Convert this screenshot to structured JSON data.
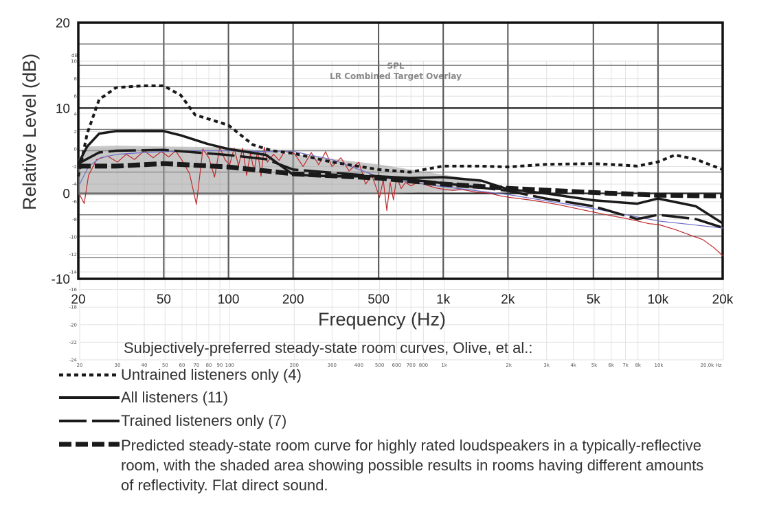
{
  "chart_data": {
    "type": "line",
    "main_axes": {
      "ylabel": "Relative Level (dB)",
      "xlabel": "Frequency (Hz)",
      "y_ticks": [
        "20",
        "10",
        "0",
        "-10"
      ],
      "ylim": [
        -10,
        20
      ],
      "x_scale": "log",
      "xlim": [
        20,
        20000
      ],
      "x_ticks": [
        {
          "value": 20,
          "label": "20"
        },
        {
          "value": 50,
          "label": "50"
        },
        {
          "value": 100,
          "label": "100"
        },
        {
          "value": 200,
          "label": "200"
        },
        {
          "value": 500,
          "label": "500"
        },
        {
          "value": 1000,
          "label": "1k"
        },
        {
          "value": 2000,
          "label": "2k"
        },
        {
          "value": 5000,
          "label": "5k"
        },
        {
          "value": 10000,
          "label": "10k"
        },
        {
          "value": 20000,
          "label": "20k"
        }
      ],
      "grid": true
    },
    "overlay": {
      "title_line1": "SPL",
      "title_line2": "LR Combined Target Overlay",
      "y_unit": "dB",
      "ylim": [
        -24,
        10
      ],
      "y_ticks": [
        "10",
        "8",
        "6",
        "4",
        "2",
        "0",
        "-2",
        "-4",
        "-6",
        "-8",
        "-10",
        "-12",
        "-14",
        "-16",
        "-18",
        "-20",
        "-22",
        "-24"
      ],
      "x_ticks": [
        {
          "value": 20,
          "label": "20"
        },
        {
          "value": 30,
          "label": "30"
        },
        {
          "value": 40,
          "label": "40"
        },
        {
          "value": 50,
          "label": "50"
        },
        {
          "value": 60,
          "label": "60"
        },
        {
          "value": 70,
          "label": "70"
        },
        {
          "value": 80,
          "label": "80"
        },
        {
          "value": 90,
          "label": "90"
        },
        {
          "value": 100,
          "label": "100"
        },
        {
          "value": 200,
          "label": "200"
        },
        {
          "value": 300,
          "label": "300"
        },
        {
          "value": 400,
          "label": "400"
        },
        {
          "value": 500,
          "label": "500"
        },
        {
          "value": 600,
          "label": "600"
        },
        {
          "value": 700,
          "label": "700"
        },
        {
          "value": 800,
          "label": "800"
        },
        {
          "value": 1000,
          "label": "1k"
        },
        {
          "value": 2000,
          "label": "2k"
        },
        {
          "value": 3000,
          "label": "3k"
        },
        {
          "value": 4000,
          "label": "4k"
        },
        {
          "value": 5000,
          "label": "5k"
        },
        {
          "value": 6000,
          "label": "6k"
        },
        {
          "value": 7000,
          "label": "7k"
        },
        {
          "value": 8000,
          "label": "8k"
        },
        {
          "value": 10000,
          "label": "10k"
        },
        {
          "value": 20000,
          "label": "20.0k Hz"
        }
      ]
    },
    "shaded_area": {
      "x": [
        20,
        22,
        30,
        50,
        100,
        200,
        500,
        1000,
        1500
      ],
      "upper": [
        4.0,
        5.5,
        5.6,
        5.5,
        5.4,
        4.6,
        3.4,
        2.2,
        1.5
      ],
      "lower": [
        -0.2,
        -0.2,
        -0.2,
        -0.2,
        -0.2,
        -0.2,
        -0.1,
        0.2,
        0.5
      ]
    },
    "series": [
      {
        "name": "Untrained listeners only (4)",
        "style": "dotted",
        "color": "#1a1a1a",
        "x": [
          20,
          22,
          25,
          30,
          40,
          50,
          60,
          70,
          100,
          130,
          160,
          200,
          300,
          500,
          700,
          1000,
          1500,
          2000,
          3000,
          5000,
          7000,
          8000,
          10000,
          12000,
          15000,
          20000
        ],
        "y": [
          2.0,
          7.0,
          11.0,
          12.4,
          12.6,
          12.6,
          11.5,
          9.2,
          8.0,
          5.7,
          5.0,
          4.7,
          3.7,
          2.8,
          2.5,
          3.2,
          3.2,
          3.1,
          3.4,
          3.5,
          3.3,
          3.2,
          3.7,
          4.5,
          4.0,
          2.8
        ]
      },
      {
        "name": "All listeners (11)",
        "style": "solid",
        "color": "#1a1a1a",
        "x": [
          20,
          22,
          25,
          30,
          50,
          60,
          80,
          100,
          150,
          200,
          300,
          500,
          700,
          1000,
          1500,
          2000,
          3000,
          5000,
          8000,
          10000,
          12000,
          15000,
          20000
        ],
        "y": [
          3.5,
          5.5,
          7.0,
          7.3,
          7.3,
          6.8,
          5.8,
          5.2,
          4.5,
          2.2,
          2.0,
          2.0,
          1.8,
          1.9,
          1.5,
          0.5,
          0.0,
          -0.8,
          -1.2,
          -0.6,
          -1.0,
          -1.5,
          -3.5
        ]
      },
      {
        "name": "Trained listeners only (7)",
        "style": "long-dash",
        "color": "#1a1a1a",
        "x": [
          20,
          25,
          30,
          50,
          100,
          150,
          200,
          500,
          1000,
          2000,
          3000,
          5000,
          8000,
          10000,
          15000,
          20000
        ],
        "y": [
          3.5,
          4.8,
          5.0,
          5.1,
          4.5,
          4.0,
          2.8,
          2.0,
          1.2,
          0.3,
          -0.6,
          -1.5,
          -3.0,
          -2.5,
          -3.0,
          -4.0
        ]
      },
      {
        "name": "Predicted steady-state room curve for highly rated loudspeakers in a typically-reflective room, with the shaded area showing possible results in rooms having different amounts of reflectivity.  Flat direct sound.",
        "style": "bold-dash",
        "color": "#1a1a1a",
        "x": [
          20,
          30,
          50,
          100,
          200,
          500,
          1000,
          2000,
          5000,
          10000,
          20000
        ],
        "y": [
          3.2,
          3.2,
          3.5,
          3.1,
          2.3,
          1.8,
          1.1,
          0.6,
          0.1,
          -0.2,
          -0.3
        ]
      }
    ],
    "overlay_series": [
      {
        "style": "solid",
        "color": "#c0282a",
        "x": [
          20,
          21,
          22,
          24,
          27,
          30,
          33,
          36,
          40,
          44,
          48,
          52,
          56,
          60,
          65,
          70,
          75,
          80,
          85,
          90,
          95,
          100,
          105,
          110,
          115,
          120,
          125,
          130,
          135,
          140,
          145,
          150,
          160,
          170,
          180,
          200,
          220,
          240,
          260,
          280,
          300,
          330,
          360,
          400,
          430,
          460,
          500,
          520,
          540,
          560,
          580,
          600,
          630,
          660,
          700,
          750,
          800,
          900,
          1000,
          1100,
          1200,
          1400,
          1600,
          1800,
          2000,
          2500,
          3000,
          3500,
          4000,
          5000,
          6000,
          7000,
          8000,
          9000,
          10000,
          12000,
          14000,
          16000,
          18000,
          20000
        ],
        "y": [
          -5.2,
          -6.2,
          -3.0,
          -1.2,
          -0.8,
          -1.5,
          -0.6,
          -1.2,
          -0.2,
          -1.0,
          -0.3,
          -0.9,
          -0.2,
          -1.3,
          -2.8,
          -6.3,
          0.0,
          -1.0,
          -3.2,
          0.2,
          -1.2,
          -1.8,
          0.1,
          -1.9,
          0.1,
          -3.0,
          -0.5,
          -2.5,
          -0.2,
          -3.1,
          0.2,
          -1.5,
          -0.6,
          -1.3,
          -0.3,
          -0.5,
          -2.0,
          -0.4,
          -1.8,
          -0.3,
          -2.0,
          -1.0,
          -2.5,
          -1.5,
          -4.0,
          -3.0,
          -5.5,
          -3.5,
          -7.0,
          -3.8,
          -5.8,
          -3.2,
          -4.5,
          -3.8,
          -4.2,
          -3.8,
          -4.0,
          -4.4,
          -4.6,
          -4.7,
          -4.6,
          -4.9,
          -5.0,
          -5.3,
          -5.5,
          -5.8,
          -6.1,
          -6.4,
          -6.7,
          -7.2,
          -7.6,
          -7.9,
          -8.2,
          -8.5,
          -8.6,
          -9.2,
          -9.8,
          -10.3,
          -11.2,
          -12.2
        ]
      },
      {
        "style": "solid",
        "color": "#6b6ec8",
        "x": [
          20,
          22,
          25,
          30,
          40,
          50,
          70,
          100,
          150,
          200,
          300,
          500,
          700,
          1000,
          2000,
          5000,
          10000,
          20000
        ],
        "y": [
          -4.0,
          -2.0,
          -1.0,
          -0.6,
          -0.4,
          -0.3,
          -0.2,
          -0.2,
          -0.3,
          -0.3,
          -1.2,
          -3.2,
          -3.8,
          -4.3,
          -5.2,
          -6.8,
          -8.2,
          -9.0
        ]
      }
    ]
  },
  "legend": {
    "heading": "Subjectively-preferred steady-state room curves, Olive, et al.:",
    "items": [
      {
        "style": "dotted",
        "label": "Untrained listeners only (4)"
      },
      {
        "style": "solid",
        "label": "All listeners (11)"
      },
      {
        "style": "long-dash",
        "label": "Trained listeners only (7)"
      },
      {
        "style": "bold-dash",
        "label": "Predicted steady-state room curve for highly rated loudspeakers in a typically-reflective room, with the shaded area showing possible results in rooms having different amounts of reflectivity.  Flat direct sound."
      }
    ]
  }
}
